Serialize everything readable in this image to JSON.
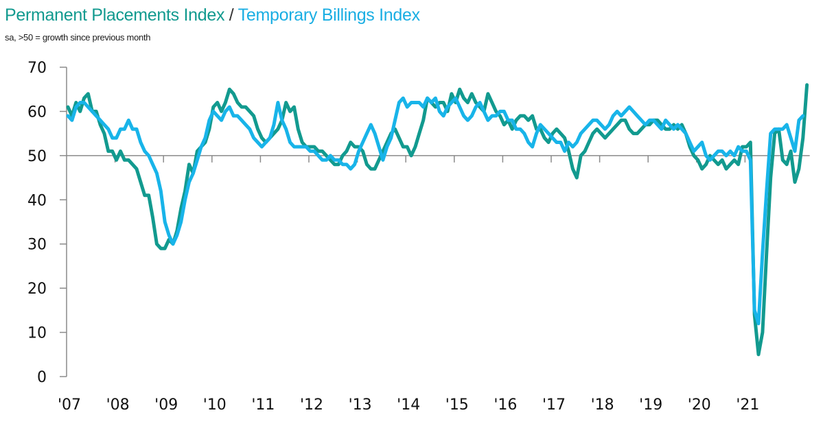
{
  "chart_data": {
    "type": "line",
    "title_parts": [
      "Permanent Placements Index",
      " / ",
      "Temporary Billings Index"
    ],
    "subtitle": "sa, >50 = growth since previous month",
    "xlabel": "",
    "ylabel": "",
    "ylim": [
      0,
      70
    ],
    "yticks": [
      0,
      10,
      20,
      30,
      40,
      50,
      60,
      70
    ],
    "ytick_labels": [
      "0",
      "10",
      "20",
      "30",
      "40",
      "50",
      "60",
      "70"
    ],
    "xtick_labels": [
      "'07",
      "'08",
      "'09",
      "'10",
      "'11",
      "'12",
      "'13",
      "'14",
      "'15",
      "'16",
      "'17",
      "'18",
      "'19",
      "'20",
      "'21"
    ],
    "x_start": "2007-01",
    "x_frequency": "monthly",
    "reference_line": 50,
    "grid": false,
    "legend": "title",
    "colors": {
      "permanent": "#129a8f",
      "temporary": "#18b4e9",
      "axis": "#8a8a8a"
    },
    "series": [
      {
        "name": "Permanent Placements Index",
        "values": [
          61,
          59,
          62,
          60,
          63,
          64,
          60,
          60,
          57,
          55,
          51,
          51,
          49,
          51,
          49,
          49,
          48,
          47,
          44,
          41,
          41,
          36,
          30,
          29,
          29,
          31,
          30,
          33,
          38,
          42,
          48,
          46,
          51,
          52,
          53,
          56,
          61,
          62,
          60,
          62,
          65,
          64,
          62,
          61,
          61,
          60,
          59,
          56,
          54,
          53,
          54,
          55,
          56,
          58,
          62,
          60,
          61,
          56,
          53,
          52,
          52,
          52,
          51,
          51,
          50,
          49,
          48,
          48,
          50,
          51,
          53,
          52,
          52,
          51,
          48,
          47,
          47,
          49,
          51,
          53,
          55,
          56,
          54,
          52,
          52,
          50,
          52,
          55,
          58,
          63,
          62,
          61,
          62,
          62,
          60,
          64,
          62,
          65,
          63,
          62,
          64,
          62,
          61,
          60,
          64,
          62,
          60,
          59,
          57,
          58,
          56,
          58,
          59,
          59,
          58,
          59,
          56,
          56,
          54,
          53,
          55,
          56,
          55,
          54,
          51,
          47,
          45,
          50,
          51,
          53,
          55,
          56,
          55,
          54,
          55,
          56,
          57,
          58,
          58,
          56,
          55,
          55,
          56,
          57,
          57,
          58,
          58,
          57,
          56,
          56,
          57,
          56,
          57,
          55,
          52,
          50,
          49,
          47,
          48,
          50,
          49,
          48,
          49,
          47,
          48,
          49,
          48,
          52,
          52,
          53,
          14,
          5,
          10,
          28,
          45,
          55,
          56,
          49,
          48,
          51,
          44,
          47,
          54,
          66
        ]
      },
      {
        "name": "Temporary Billings Index",
        "values": [
          59,
          58,
          61,
          62,
          62,
          61,
          60,
          59,
          58,
          57,
          56,
          54,
          54,
          56,
          56,
          58,
          56,
          56,
          53,
          51,
          50,
          48,
          46,
          42,
          35,
          32,
          30,
          32,
          35,
          40,
          44,
          46,
          49,
          52,
          54,
          58,
          60,
          59,
          58,
          60,
          61,
          59,
          59,
          58,
          57,
          56,
          54,
          53,
          52,
          53,
          54,
          57,
          62,
          58,
          56,
          53,
          52,
          52,
          52,
          52,
          51,
          51,
          50,
          49,
          49,
          50,
          49,
          49,
          48,
          48,
          47,
          48,
          51,
          53,
          55,
          57,
          55,
          52,
          49,
          52,
          54,
          58,
          62,
          63,
          61,
          62,
          62,
          62,
          61,
          63,
          62,
          63,
          60,
          59,
          61,
          62,
          63,
          61,
          59,
          58,
          59,
          61,
          62,
          60,
          58,
          59,
          59,
          60,
          60,
          58,
          58,
          56,
          56,
          55,
          53,
          52,
          55,
          57,
          56,
          55,
          54,
          53,
          53,
          51,
          53,
          52,
          53,
          55,
          56,
          57,
          58,
          58,
          57,
          56,
          57,
          59,
          60,
          59,
          60,
          61,
          60,
          59,
          58,
          57,
          58,
          58,
          57,
          56,
          58,
          57,
          56,
          57,
          56,
          55,
          53,
          51,
          52,
          53,
          50,
          49,
          50,
          51,
          51,
          50,
          51,
          50,
          52,
          51,
          51,
          49,
          15,
          12,
          28,
          42,
          55,
          56,
          56,
          56,
          57,
          54,
          51,
          58,
          59
        ]
      }
    ]
  }
}
